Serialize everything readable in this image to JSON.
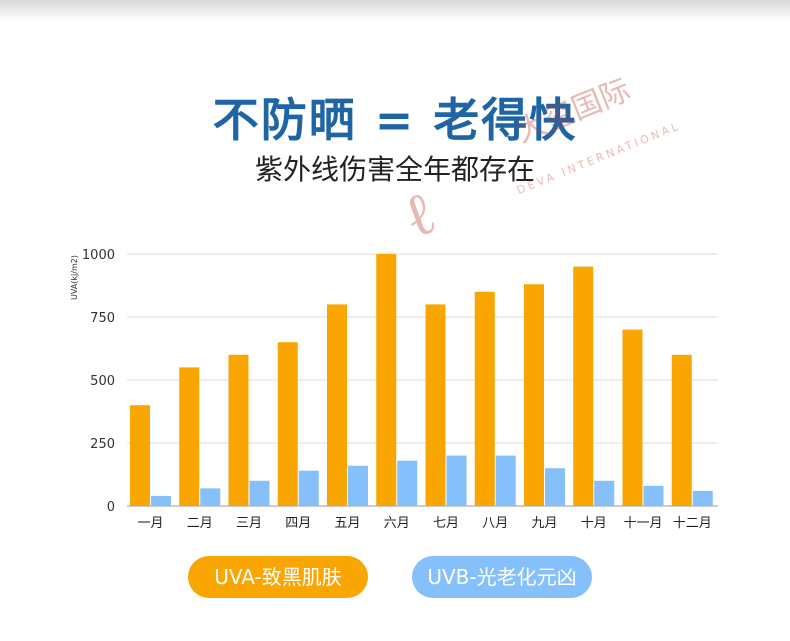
{
  "title": "不防晒 = 老得快",
  "subtitle": "紫外线伤害全年都存在",
  "watermark": {
    "cn": "大玺国际",
    "en": "DEVA INTERNATIONAL"
  },
  "colors": {
    "title": "#1f65a6",
    "uva": "#f9a602",
    "uvb": "#86c0fa",
    "grid": "#dddddd"
  },
  "legend": {
    "uva": "UVA-致黑肌肤",
    "uvb": "UVB-光老化元凶"
  },
  "chart_data": {
    "type": "bar",
    "categories": [
      "一月",
      "二月",
      "三月",
      "四月",
      "五月",
      "六月",
      "七月",
      "八月",
      "九月",
      "十月",
      "十一月",
      "十二月"
    ],
    "series": [
      {
        "name": "UVA-致黑肌肤",
        "values": [
          400,
          550,
          600,
          650,
          800,
          1000,
          800,
          850,
          880,
          950,
          700,
          600
        ]
      },
      {
        "name": "UVB-光老化元凶",
        "values": [
          40,
          70,
          100,
          140,
          160,
          180,
          200,
          200,
          150,
          100,
          80,
          60
        ]
      }
    ],
    "ylabel": "UVA(kj/m2)",
    "ylim": [
      0,
      1000
    ],
    "yticks": [
      0,
      250,
      500,
      750,
      1000
    ],
    "grid": true,
    "legend_position": "bottom"
  }
}
